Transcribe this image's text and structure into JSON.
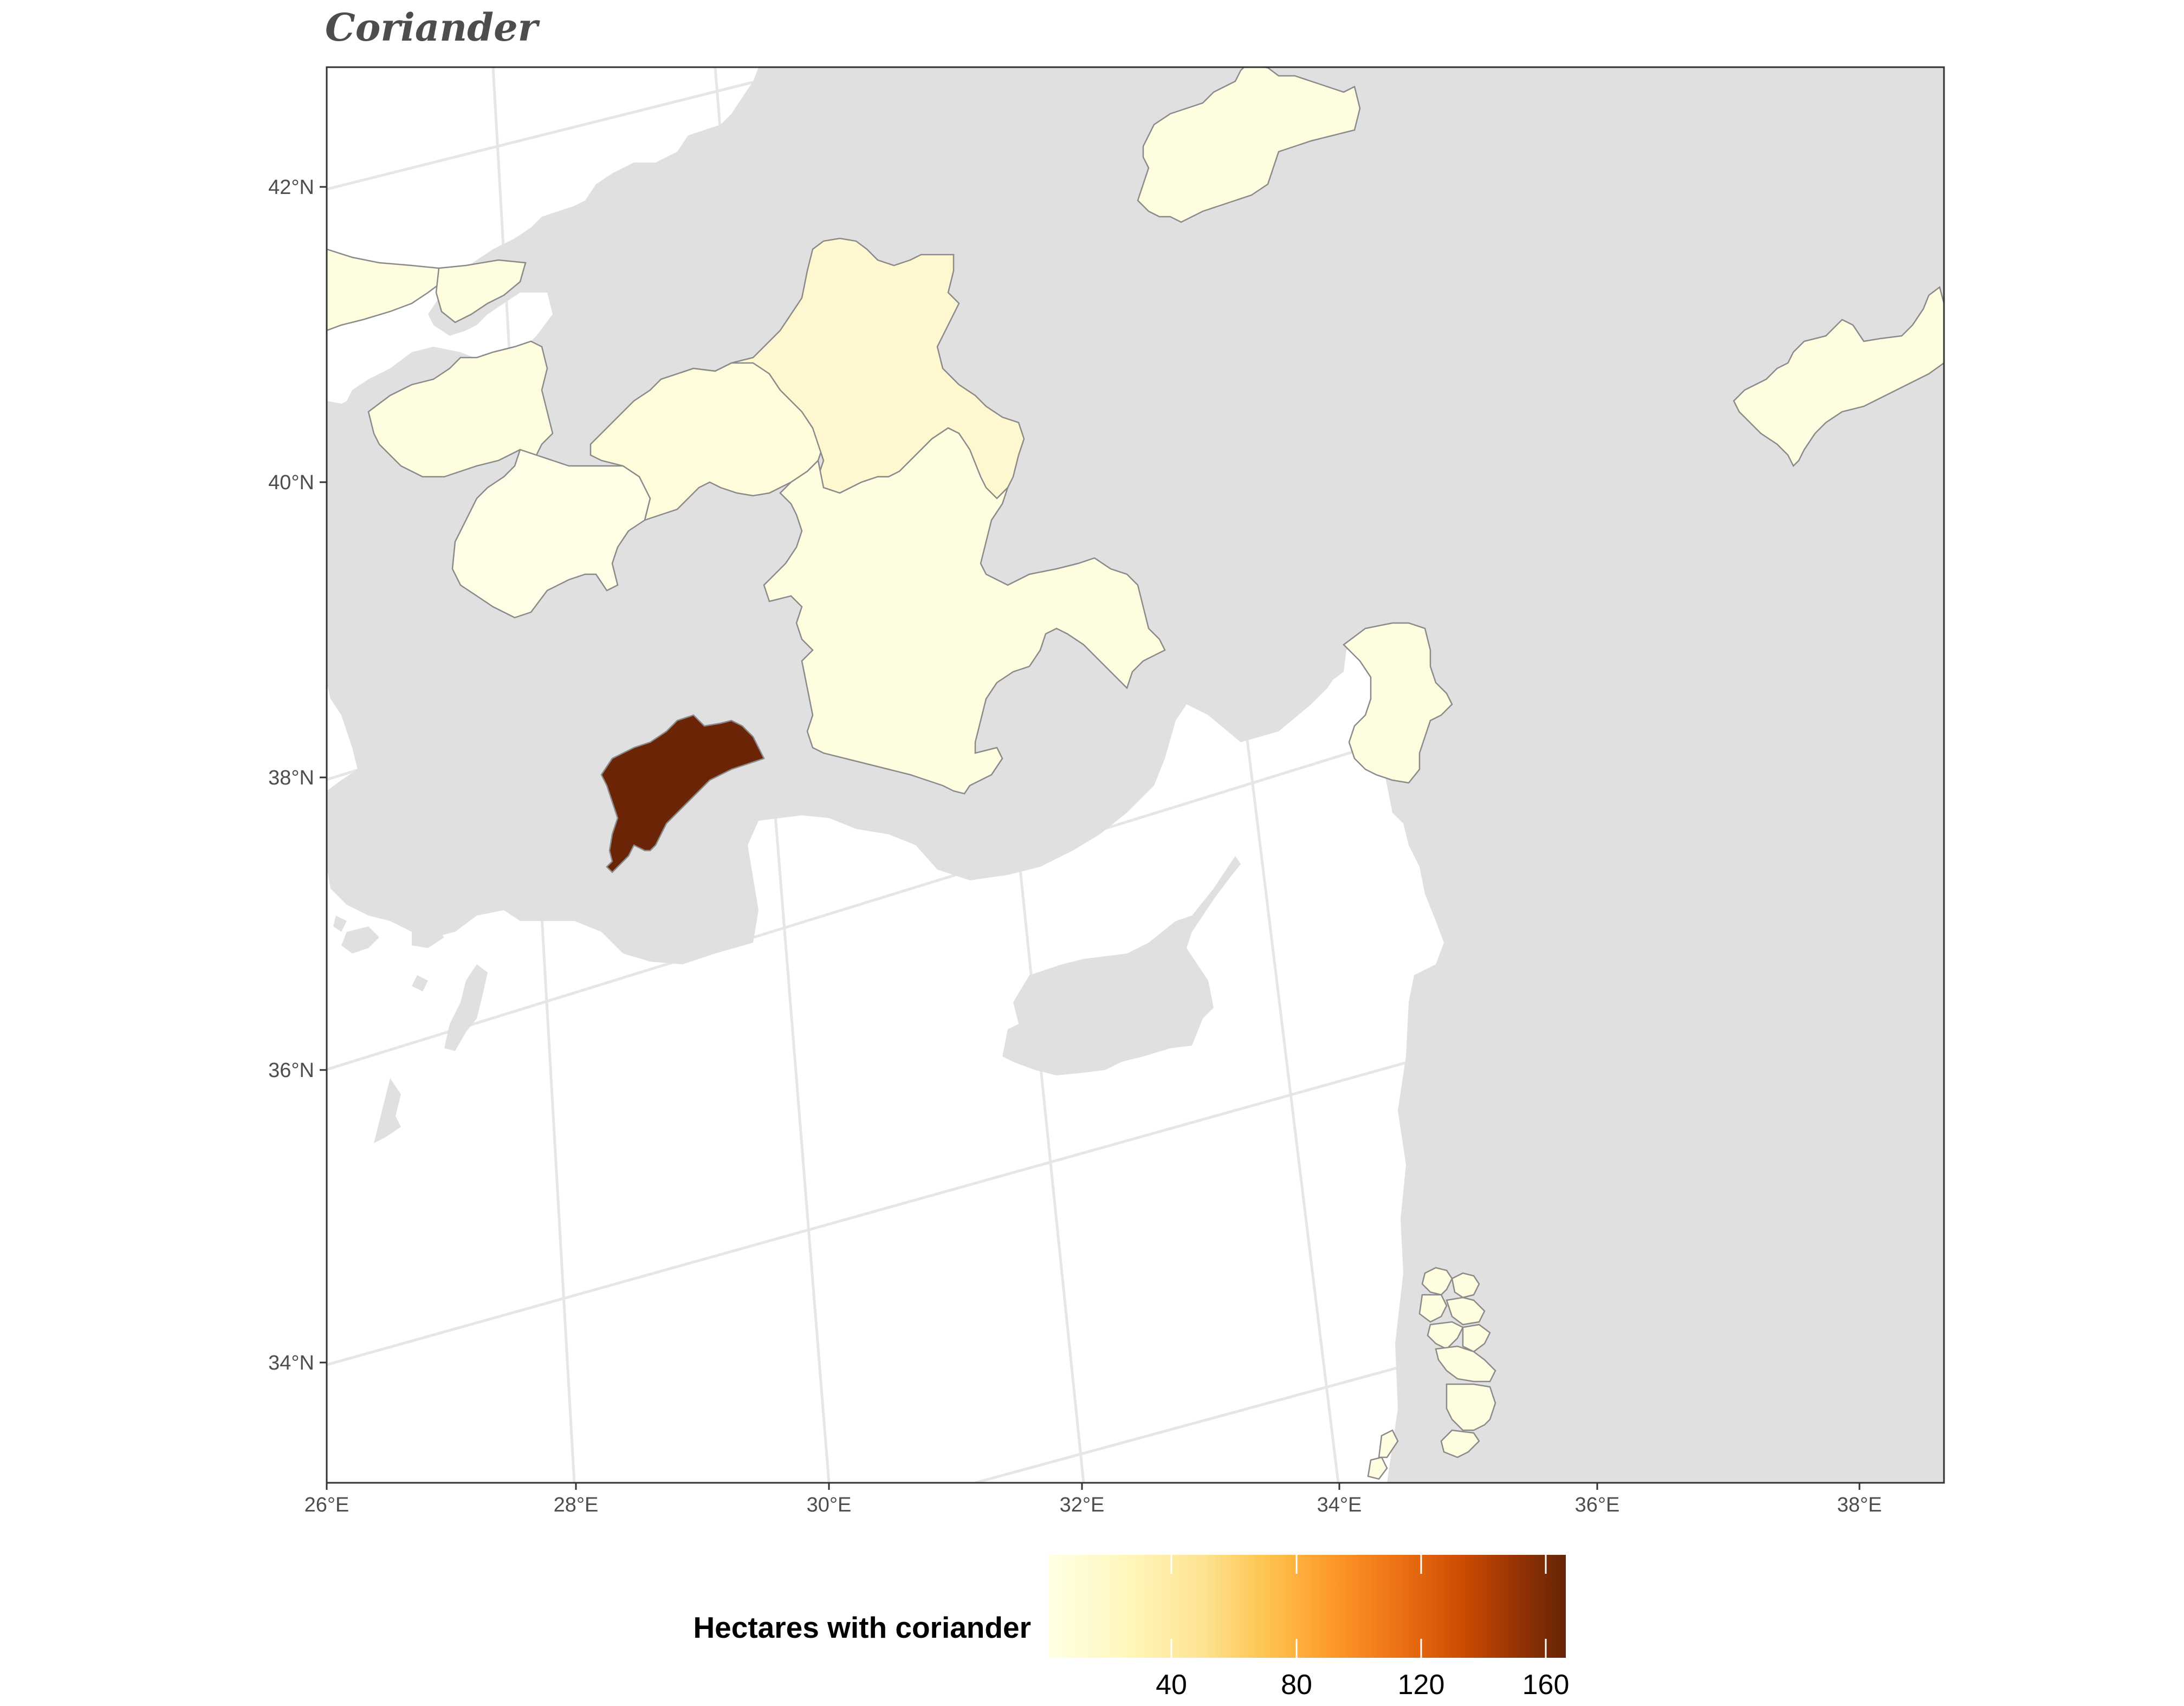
{
  "title": "Coriander",
  "axes": {
    "x_ticks": [
      "26°E",
      "28°E",
      "30°E",
      "32°E",
      "34°E",
      "36°E",
      "38°E"
    ],
    "y_ticks": [
      "42°N",
      "40°N",
      "38°N",
      "36°N",
      "34°N"
    ]
  },
  "legend": {
    "title": "Hectares with coriander",
    "ticks": [
      "40",
      "80",
      "120",
      "160"
    ],
    "colors": [
      "#ffffe5",
      "#fff7bc",
      "#fee391",
      "#fec44f",
      "#fe9929",
      "#ec7014",
      "#cc4c02",
      "#993404",
      "#662506"
    ]
  },
  "colors": {
    "land": "#e0e0e0",
    "water": "#ffffff",
    "grid": "#e6e6e6",
    "border": "#8a8a8a",
    "low_value": "#fffde0",
    "high_value": "#6b2506"
  }
}
